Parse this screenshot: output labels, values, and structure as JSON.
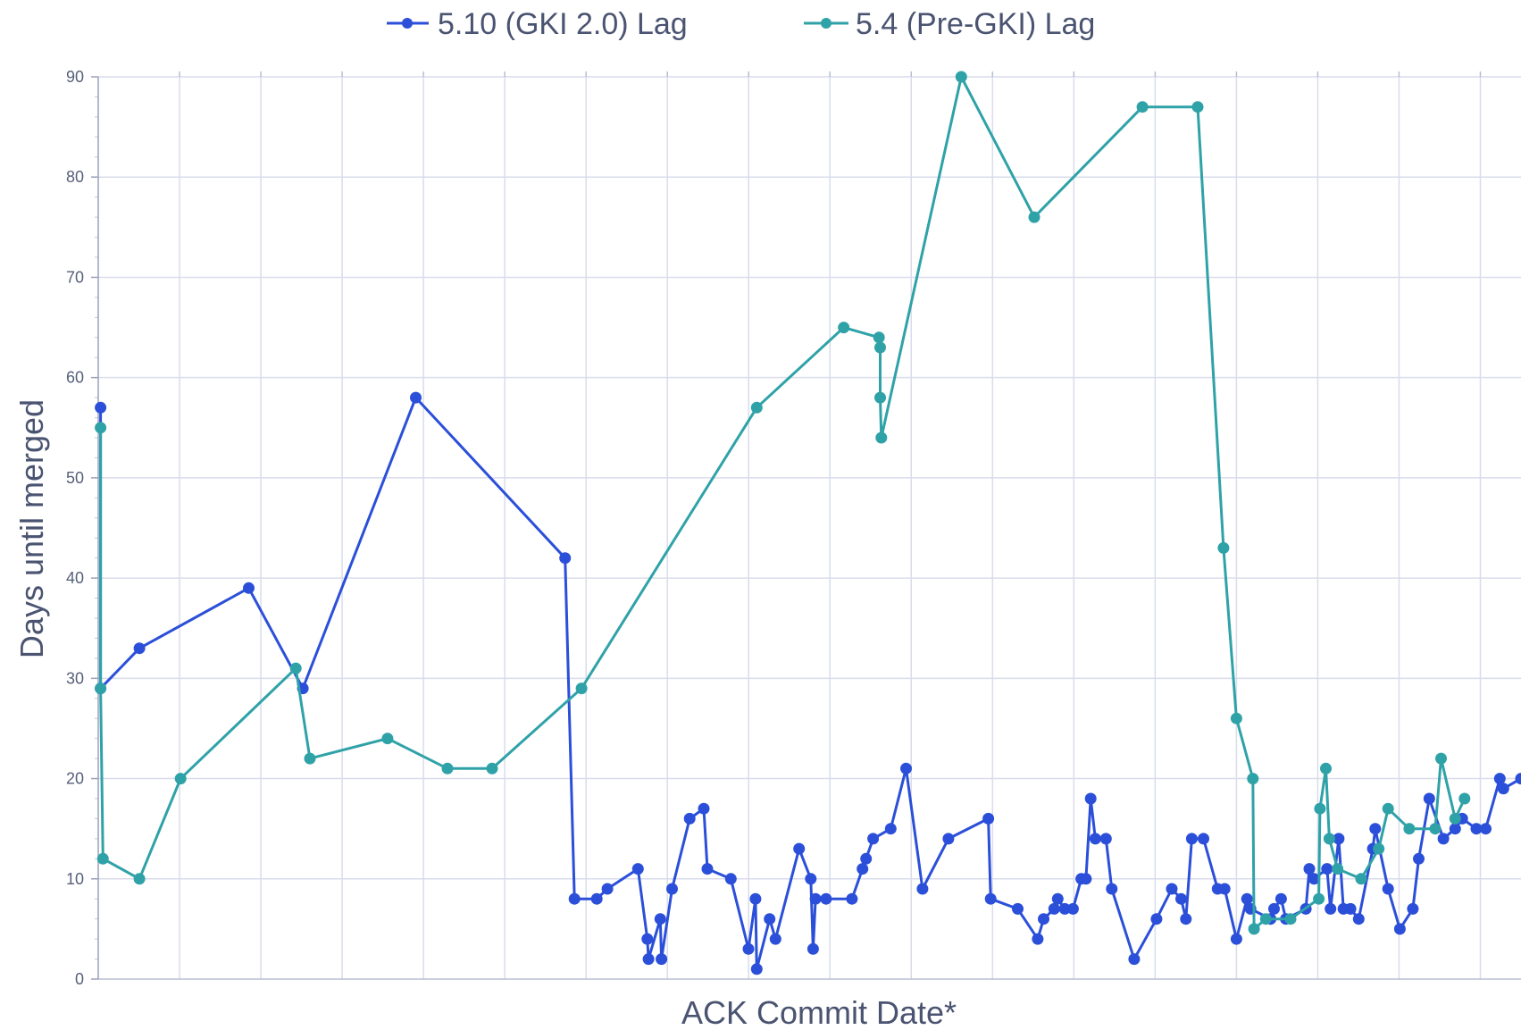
{
  "chart_data": {
    "type": "line",
    "title": "",
    "xlabel": "ACK Commit Date*",
    "ylabel": "Days until merged",
    "ylim": [
      0,
      90
    ],
    "yticks": [
      0,
      10,
      20,
      30,
      40,
      50,
      60,
      70,
      80,
      90
    ],
    "grid": true,
    "legend": "top",
    "series": [
      {
        "name": "5.10 (GKI 2.0) Lag",
        "color": "#2b4fd9",
        "x": [
          0.2,
          0.2,
          3.5,
          12.8,
          17.4,
          27.0,
          39.7,
          40.5,
          42.4,
          43.3,
          45.9,
          46.7,
          46.8,
          47.8,
          47.9,
          48.8,
          50.3,
          51.5,
          51.8,
          53.8,
          55.3,
          55.9,
          56.0,
          57.1,
          57.6,
          59.6,
          60.6,
          60.8,
          61.0,
          61.9,
          64.1,
          65.0,
          65.3,
          65.9,
          67.4,
          68.7,
          70.1,
          72.3,
          75.7,
          75.9,
          78.2,
          79.9,
          80.4,
          81.3,
          81.6,
          82.2,
          82.9,
          83.6,
          84.0,
          84.4,
          84.8,
          85.7,
          86.2,
          88.1,
          90.0,
          91.3,
          92.1,
          92.5,
          93.0,
          94.0,
          95.2,
          95.8,
          96.8,
          97.7,
          98.0,
          99.7,
          100.0,
          100.6,
          101.0,
          102.7,
          103.0,
          103.4,
          104.5,
          104.8,
          105.5,
          105.9,
          106.5,
          107.2,
          108.4,
          108.6,
          109.7,
          110.7,
          111.8,
          112.3,
          113.2,
          114.4,
          115.4,
          116.0,
          117.2,
          118.0,
          119.2,
          119.5,
          121.0
        ],
        "y": [
          57,
          29,
          33,
          39,
          29,
          58,
          42,
          8,
          8,
          9,
          11,
          4,
          2,
          6,
          2,
          9,
          16,
          17,
          11,
          10,
          3,
          8,
          1,
          6,
          4,
          13,
          10,
          3,
          8,
          8,
          8,
          11,
          12,
          14,
          15,
          21,
          9,
          14,
          16,
          8,
          7,
          4,
          6,
          7,
          8,
          7,
          7,
          10,
          10,
          18,
          14,
          14,
          9,
          2,
          6,
          9,
          8,
          6,
          14,
          14,
          9,
          9,
          4,
          8,
          7,
          6,
          7,
          8,
          6,
          7,
          11,
          10,
          11,
          7,
          14,
          7,
          7,
          6,
          13,
          15,
          9,
          5,
          7,
          12,
          18,
          14,
          15,
          16,
          15,
          15,
          20,
          19,
          20
        ]
      },
      {
        "name": "5.4 (Pre-GKI) Lag",
        "color": "#2fa2a8",
        "x": [
          0.2,
          0.2,
          0.4,
          3.5,
          7.0,
          16.8,
          18.0,
          24.6,
          29.7,
          33.5,
          41.1,
          56.0,
          63.4,
          66.4,
          66.5,
          66.5,
          66.6,
          73.4,
          79.6,
          88.8,
          93.5,
          95.7,
          96.8,
          98.2,
          98.3,
          99.3,
          101.4,
          103.8,
          103.9,
          104.4,
          104.7,
          105.4,
          107.4,
          108.9,
          109.7,
          111.5,
          113.7,
          114.2,
          115.4,
          116.2
        ],
        "y": [
          55,
          29,
          12,
          10,
          20,
          31,
          22,
          24,
          21,
          21,
          29,
          57,
          65,
          64,
          63,
          58,
          54,
          90,
          76,
          87,
          87,
          43,
          26,
          20,
          5,
          6,
          6,
          8,
          17,
          21,
          14,
          11,
          10,
          13,
          17,
          15,
          15,
          22,
          16,
          18
        ]
      }
    ]
  }
}
